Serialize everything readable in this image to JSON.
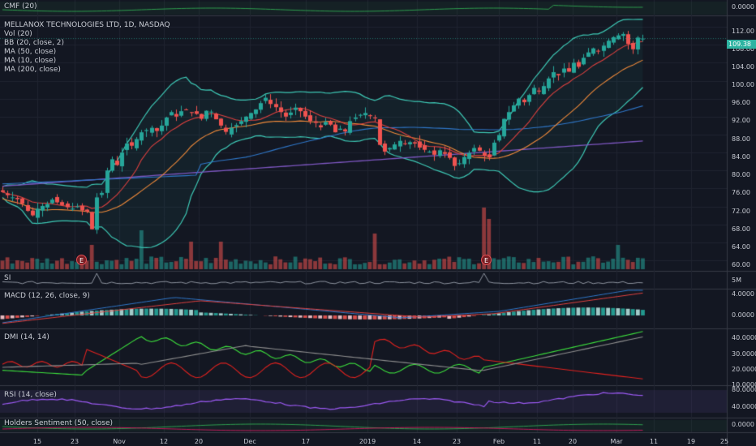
{
  "panes": {
    "cmf": {
      "label": "CMF (20)",
      "value_tick": "0.0000"
    },
    "main": {
      "title": "MELLANOX TECHNOLOGIES LTD, 1D, NASDAQ",
      "studies": [
        "Vol (20)",
        "BB (20, close, 2)",
        "MA (50, close)",
        "MA (10, close)",
        "MA (200, close)"
      ],
      "price_ticks": [
        "112.00",
        "108.00",
        "104.00",
        "100.00",
        "96.00",
        "92.00",
        "88.00",
        "84.00",
        "80.00",
        "76.00",
        "72.00",
        "68.00",
        "64.00",
        "60.00"
      ],
      "last_price": "109.38",
      "earnings_marker": "E"
    },
    "si": {
      "label": "SI",
      "value_tick": "5M"
    },
    "macd": {
      "label": "MACD (12, 26, close, 9)",
      "ticks": [
        "4.0000",
        "0.0000"
      ]
    },
    "dmi": {
      "label": "DMI (14, 14)",
      "ticks": [
        "40.0000",
        "30.0000",
        "20.0000",
        "10.0000"
      ]
    },
    "rsi": {
      "label": "RSI (14, close)",
      "ticks": [
        "80.0000",
        "40.0000"
      ]
    },
    "holders": {
      "label": "Holders Sentiment (50, close)",
      "value_tick": "0.0000"
    }
  },
  "x_axis": [
    "15",
    "23",
    "Nov",
    "12",
    "20",
    "Dec",
    "17",
    "2019",
    "14",
    "23",
    "Feb",
    "11",
    "20",
    "Mar",
    "11",
    "19",
    "25"
  ],
  "colors": {
    "up": "#26a69a",
    "down": "#ef5350",
    "bb": "#3ec9b6",
    "ma50": "#2f77c9",
    "ma10": "#e0413f",
    "ma200": "#7e57c2",
    "macd": "#2f77c9",
    "signal": "#e0413f"
  },
  "chart_data": {
    "type": "candlestick",
    "title": "MELLANOX TECHNOLOGIES LTD, 1D, NASDAQ",
    "xlabel": "",
    "ylabel": "",
    "ylim": [
      58,
      114
    ],
    "close": [
      75.2,
      74.5,
      74.0,
      73.6,
      72.6,
      71.0,
      70.0,
      71.5,
      72.1,
      72.5,
      73.5,
      72.9,
      72.3,
      71.8,
      71.5,
      72.0,
      71.1,
      70.8,
      66.9,
      74.0,
      75.0,
      80.0,
      82.5,
      81.2,
      84.0,
      86.0,
      85.5,
      87.0,
      88.5,
      89.0,
      89.5,
      88.8,
      90.0,
      91.8,
      93.0,
      92.0,
      93.2,
      93.5,
      92.8,
      92.6,
      91.5,
      93.3,
      93.1,
      91.4,
      90.0,
      88.6,
      89.5,
      90.1,
      91.0,
      92.0,
      92.8,
      93.6,
      95.0,
      96.2,
      94.8,
      94.1,
      93.0,
      92.0,
      92.9,
      94.0,
      93.2,
      92.0,
      91.0,
      90.6,
      89.6,
      90.8,
      90.2,
      88.5,
      89.3,
      88.7,
      91.0,
      91.8,
      92.4,
      92.8,
      92.1,
      91.6,
      85.7,
      84.2,
      85.0,
      85.8,
      86.6,
      86.0,
      86.3,
      86.0,
      85.1,
      84.6,
      84.2,
      83.5,
      84.5,
      83.7,
      82.8,
      81.0,
      81.6,
      83.0,
      83.9,
      85.0,
      84.4,
      83.3,
      82.9,
      86.2,
      87.9,
      91.5,
      93.0,
      94.5,
      96.0,
      95.2,
      96.8,
      98.4,
      97.6,
      98.8,
      100.5,
      101.9,
      101.2,
      102.7,
      102.0,
      104.0,
      103.1,
      105.1,
      106.3,
      107.2,
      106.6,
      107.8,
      108.9,
      109.7,
      110.1,
      110.4,
      108.2,
      107.0,
      109.6,
      109.38
    ],
    "volume_range": [
      0,
      2.0
    ],
    "series": [
      {
        "name": "MA (10, close)"
      },
      {
        "name": "MA (50, close)"
      },
      {
        "name": "MA (200, close)"
      },
      {
        "name": "BB (20, close, 2)"
      }
    ]
  }
}
